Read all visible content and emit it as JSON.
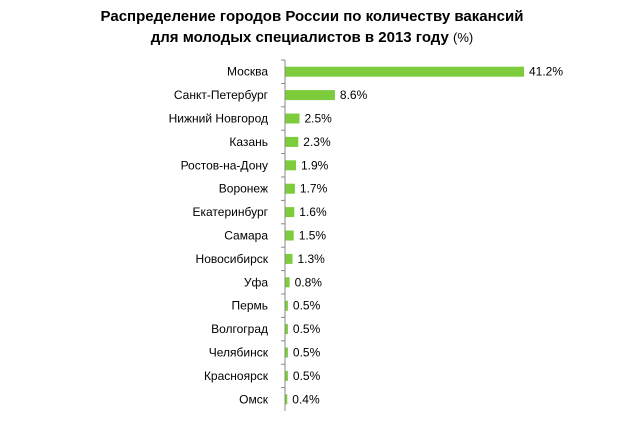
{
  "chart_data": {
    "type": "bar",
    "orientation": "horizontal",
    "title_line1": "Распределение городов России по количеству вакансий",
    "title_line2": "для молодых специалистов  в 2013 году",
    "title_unit": "(%)",
    "categories": [
      "Москва",
      "Санкт-Петербург",
      "Нижний Новгород",
      "Казань",
      "Ростов-на-Дону",
      "Воронеж",
      "Екатеринбург",
      "Самара",
      "Новосибирск",
      "Уфа",
      "Пермь",
      "Волгоград",
      "Челябинск",
      "Красноярск",
      "Омск"
    ],
    "values": [
      41.2,
      8.6,
      2.5,
      2.3,
      1.9,
      1.7,
      1.6,
      1.5,
      1.3,
      0.8,
      0.5,
      0.5,
      0.5,
      0.5,
      0.4
    ],
    "value_labels": [
      "41.2%",
      "8.6%",
      "2.5%",
      "2.3%",
      "1.9%",
      "1.7%",
      "1.6%",
      "1.5%",
      "1.3%",
      "0.8%",
      "0.5%",
      "0.5%",
      "0.5%",
      "0.5%",
      "0.4%"
    ],
    "xlim": [
      0,
      41.2
    ],
    "bar_color": "#7ccc3c",
    "axis_color": "#888888",
    "grid": false,
    "legend": "none"
  }
}
